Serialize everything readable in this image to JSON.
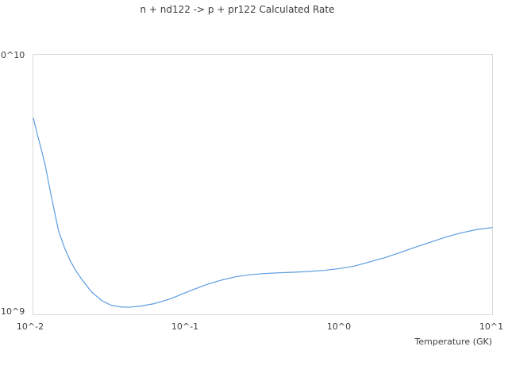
{
  "title": "n + nd122 -> p + pr122 Calculated Rate",
  "colors": {
    "line": "#5b9de0",
    "axis": "#d9d9d9",
    "text": "#3d3d3d"
  },
  "axes": {
    "x_title": "Temperature (GK)",
    "x_tick_labels": [
      "10^-2",
      "10^-1",
      "10^0",
      "10^1"
    ],
    "y_tick_top": "10^10",
    "y_tick_bottom": "10^9"
  },
  "chart_data": {
    "type": "line",
    "title": "n + nd122 -> p + pr122 Calculated Rate",
    "xlabel": "Temperature (GK)",
    "ylabel": "",
    "x_scale": "log",
    "y_scale": "log",
    "xlim": [
      0.01,
      10
    ],
    "ylim": [
      1000000000.0,
      10000000000.0
    ],
    "x_ticks": [
      0.01,
      0.1,
      1,
      10
    ],
    "y_ticks": [
      1000000000.0,
      10000000000.0
    ],
    "grid": false,
    "legend": "none",
    "series": [
      {
        "name": "calculated-rate",
        "color": "#5b9de0",
        "x": [
          0.01,
          0.0106,
          0.0113,
          0.012,
          0.0126,
          0.0135,
          0.0146,
          0.016,
          0.0175,
          0.019,
          0.021,
          0.024,
          0.028,
          0.032,
          0.037,
          0.042,
          0.05,
          0.062,
          0.078,
          0.095,
          0.115,
          0.14,
          0.17,
          0.21,
          0.26,
          0.32,
          0.4,
          0.5,
          0.63,
          0.8,
          1.0,
          1.26,
          1.6,
          2.0,
          2.5,
          3.2,
          4.0,
          5.0,
          6.3,
          7.9,
          10.0
        ],
        "y": [
          5700000000.0,
          4950000000.0,
          4300000000.0,
          3720000000.0,
          3200000000.0,
          2620000000.0,
          2100000000.0,
          1800000000.0,
          1600000000.0,
          1470000000.0,
          1350000000.0,
          1220000000.0,
          1130000000.0,
          1085000000.0,
          1068000000.0,
          1065000000.0,
          1075000000.0,
          1100000000.0,
          1145000000.0,
          1200000000.0,
          1255000000.0,
          1310000000.0,
          1355000000.0,
          1395000000.0,
          1420000000.0,
          1435000000.0,
          1445000000.0,
          1452000000.0,
          1462000000.0,
          1478000000.0,
          1500000000.0,
          1535000000.0,
          1595000000.0,
          1655000000.0,
          1730000000.0,
          1820000000.0,
          1900000000.0,
          1985000000.0,
          2060000000.0,
          2120000000.0,
          2160000000.0
        ]
      }
    ]
  }
}
